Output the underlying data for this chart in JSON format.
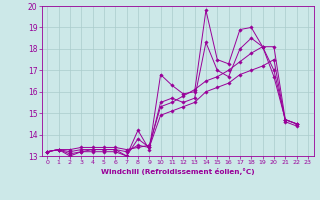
{
  "xlabel": "Windchill (Refroidissement éolien,°C)",
  "bg_color": "#cce8e8",
  "line_color": "#990099",
  "grid_color": "#aacccc",
  "xlim": [
    -0.5,
    23.5
  ],
  "ylim": [
    13,
    20
  ],
  "xticks": [
    0,
    1,
    2,
    3,
    4,
    5,
    6,
    7,
    8,
    9,
    10,
    11,
    12,
    13,
    14,
    15,
    16,
    17,
    18,
    19,
    20,
    21,
    22,
    23
  ],
  "yticks": [
    13,
    14,
    15,
    16,
    17,
    18,
    19,
    20
  ],
  "series": [
    [
      13.2,
      13.3,
      13.0,
      13.2,
      13.2,
      13.2,
      13.2,
      13.0,
      14.2,
      13.3,
      16.8,
      16.3,
      15.9,
      16.0,
      19.8,
      17.5,
      17.3,
      18.9,
      19.0,
      18.1,
      16.7,
      14.7,
      14.5
    ],
    [
      13.2,
      13.3,
      13.3,
      13.4,
      13.4,
      13.4,
      13.4,
      13.3,
      13.4,
      13.5,
      15.3,
      15.5,
      15.8,
      16.1,
      16.5,
      16.7,
      17.0,
      17.4,
      17.8,
      18.1,
      18.1,
      14.7,
      14.5
    ],
    [
      13.2,
      13.3,
      13.2,
      13.3,
      13.3,
      13.3,
      13.3,
      13.2,
      13.5,
      13.4,
      14.9,
      15.1,
      15.3,
      15.5,
      16.0,
      16.2,
      16.4,
      16.8,
      17.0,
      17.2,
      17.5,
      14.6,
      14.4
    ],
    [
      13.2,
      13.3,
      13.1,
      13.2,
      13.3,
      13.3,
      13.3,
      13.0,
      13.8,
      13.4,
      15.5,
      15.7,
      15.5,
      15.7,
      18.3,
      17.0,
      16.7,
      18.0,
      18.5,
      18.1,
      17.0,
      14.7,
      14.5
    ]
  ]
}
